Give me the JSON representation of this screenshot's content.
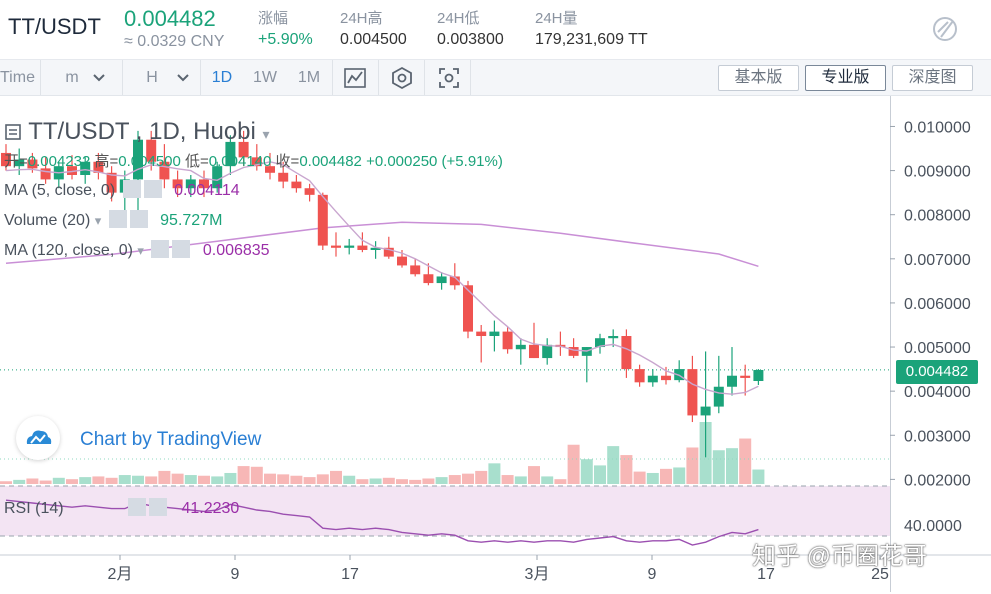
{
  "header": {
    "pair": "TT/USDT",
    "price": "0.004482",
    "cny": "≈ 0.0329 CNY",
    "stats": [
      {
        "label": "涨幅",
        "value": "+5.90%"
      },
      {
        "label": "24H高",
        "value": "0.004500"
      },
      {
        "label": "24H低",
        "value": "0.003800"
      },
      {
        "label": "24H量",
        "value": "179,231,609 TT"
      }
    ]
  },
  "toolbar": {
    "time_label": "Time",
    "minute_label": "m",
    "hour_label": "H",
    "intervals": [
      "1D",
      "1W",
      "1M"
    ],
    "active_interval": "1D",
    "view_buttons": [
      "基本版",
      "专业版",
      "深度图"
    ],
    "active_view": "专业版"
  },
  "legend": {
    "title": "TT/USDT , 1D, Huobi",
    "open_label": "开=",
    "open": "0.004232",
    "high_label": "高=",
    "high": "0.004500",
    "low_label": "低=",
    "low": "0.004140",
    "close_label": "收=",
    "close": "0.004482",
    "change": "+0.000250 (+5.91%)",
    "ma5_label": "MA (5, close, 0)",
    "ma5_value": "0.004114",
    "volume_label": "Volume (20)",
    "volume_value": "95.727M",
    "ma120_label": "MA (120, close, 0)",
    "ma120_value": "0.006835",
    "rsi_label": "RSI (14)",
    "rsi_value": "41.2230"
  },
  "branding": {
    "tv_text": "Chart by TradingView",
    "watermark": "知乎 @币圈花哥"
  },
  "chart_data": {
    "type": "candlestick",
    "colors": {
      "up": "#1ba37a",
      "down": "#ef5350",
      "ma5": "#c9a6cf",
      "ma120": "#c98fd6",
      "rsi": "#9b4fb0"
    },
    "y_axis": {
      "ticks": [
        "0.010000",
        "0.009000",
        "0.008000",
        "0.007000",
        "0.006000",
        "0.005000",
        "0.004000",
        "0.003000",
        "0.002000"
      ],
      "range": [
        0.00185,
        0.0106
      ]
    },
    "x_axis": {
      "ticks": [
        "2月",
        "9",
        "17",
        "3月",
        "9",
        "17",
        "25"
      ]
    },
    "last_price_tag": "0.004482",
    "candles": [
      {
        "o": 0.0094,
        "h": 0.0096,
        "l": 0.009,
        "c": 0.0091
      },
      {
        "o": 0.0091,
        "h": 0.0095,
        "l": 0.0089,
        "c": 0.00925
      },
      {
        "o": 0.00925,
        "h": 0.0094,
        "l": 0.00895,
        "c": 0.00905
      },
      {
        "o": 0.00905,
        "h": 0.0093,
        "l": 0.0087,
        "c": 0.0088
      },
      {
        "o": 0.0088,
        "h": 0.0092,
        "l": 0.0086,
        "c": 0.0091
      },
      {
        "o": 0.0091,
        "h": 0.00935,
        "l": 0.0088,
        "c": 0.0089
      },
      {
        "o": 0.0089,
        "h": 0.0093,
        "l": 0.0087,
        "c": 0.0092
      },
      {
        "o": 0.0092,
        "h": 0.0094,
        "l": 0.0088,
        "c": 0.00895
      },
      {
        "o": 0.00895,
        "h": 0.0091,
        "l": 0.0083,
        "c": 0.0085
      },
      {
        "o": 0.0085,
        "h": 0.009,
        "l": 0.0081,
        "c": 0.0088
      },
      {
        "o": 0.0088,
        "h": 0.0099,
        "l": 0.0078,
        "c": 0.0097
      },
      {
        "o": 0.0097,
        "h": 0.0099,
        "l": 0.009,
        "c": 0.0092
      },
      {
        "o": 0.0092,
        "h": 0.0096,
        "l": 0.0086,
        "c": 0.0088
      },
      {
        "o": 0.0088,
        "h": 0.009,
        "l": 0.0084,
        "c": 0.0086
      },
      {
        "o": 0.0086,
        "h": 0.0089,
        "l": 0.0084,
        "c": 0.0088
      },
      {
        "o": 0.0088,
        "h": 0.009,
        "l": 0.0084,
        "c": 0.0086
      },
      {
        "o": 0.0086,
        "h": 0.0092,
        "l": 0.0085,
        "c": 0.0091
      },
      {
        "o": 0.0091,
        "h": 0.0098,
        "l": 0.0089,
        "c": 0.00965
      },
      {
        "o": 0.00965,
        "h": 0.0099,
        "l": 0.0091,
        "c": 0.0093
      },
      {
        "o": 0.0093,
        "h": 0.0096,
        "l": 0.009,
        "c": 0.0091
      },
      {
        "o": 0.0091,
        "h": 0.0094,
        "l": 0.0088,
        "c": 0.00895
      },
      {
        "o": 0.00895,
        "h": 0.0092,
        "l": 0.0086,
        "c": 0.00875
      },
      {
        "o": 0.00875,
        "h": 0.0089,
        "l": 0.0085,
        "c": 0.0086
      },
      {
        "o": 0.0086,
        "h": 0.0087,
        "l": 0.0083,
        "c": 0.00845
      },
      {
        "o": 0.00845,
        "h": 0.0085,
        "l": 0.0072,
        "c": 0.0073
      },
      {
        "o": 0.0073,
        "h": 0.0076,
        "l": 0.00705,
        "c": 0.00725
      },
      {
        "o": 0.00725,
        "h": 0.00745,
        "l": 0.0071,
        "c": 0.0073
      },
      {
        "o": 0.0073,
        "h": 0.0076,
        "l": 0.00715,
        "c": 0.0072
      },
      {
        "o": 0.0072,
        "h": 0.0074,
        "l": 0.007,
        "c": 0.00725
      },
      {
        "o": 0.00725,
        "h": 0.0075,
        "l": 0.007,
        "c": 0.00705
      },
      {
        "o": 0.00705,
        "h": 0.0072,
        "l": 0.0068,
        "c": 0.00685
      },
      {
        "o": 0.00685,
        "h": 0.007,
        "l": 0.0066,
        "c": 0.00665
      },
      {
        "o": 0.00665,
        "h": 0.0069,
        "l": 0.0064,
        "c": 0.00645
      },
      {
        "o": 0.00645,
        "h": 0.0067,
        "l": 0.0063,
        "c": 0.0066
      },
      {
        "o": 0.0066,
        "h": 0.0069,
        "l": 0.0063,
        "c": 0.0064
      },
      {
        "o": 0.0064,
        "h": 0.0065,
        "l": 0.0052,
        "c": 0.00535
      },
      {
        "o": 0.00535,
        "h": 0.0055,
        "l": 0.00465,
        "c": 0.00525
      },
      {
        "o": 0.00525,
        "h": 0.0056,
        "l": 0.0049,
        "c": 0.00535
      },
      {
        "o": 0.00535,
        "h": 0.00545,
        "l": 0.00485,
        "c": 0.00495
      },
      {
        "o": 0.00495,
        "h": 0.0052,
        "l": 0.0046,
        "c": 0.00505
      },
      {
        "o": 0.00505,
        "h": 0.00555,
        "l": 0.00475,
        "c": 0.00475
      },
      {
        "o": 0.00475,
        "h": 0.0052,
        "l": 0.0046,
        "c": 0.00505
      },
      {
        "o": 0.00505,
        "h": 0.00535,
        "l": 0.0048,
        "c": 0.005
      },
      {
        "o": 0.005,
        "h": 0.0052,
        "l": 0.00475,
        "c": 0.0048
      },
      {
        "o": 0.0048,
        "h": 0.005,
        "l": 0.0042,
        "c": 0.005
      },
      {
        "o": 0.005,
        "h": 0.0053,
        "l": 0.00485,
        "c": 0.0052
      },
      {
        "o": 0.0052,
        "h": 0.0054,
        "l": 0.005,
        "c": 0.00525
      },
      {
        "o": 0.00525,
        "h": 0.0054,
        "l": 0.0043,
        "c": 0.0045
      },
      {
        "o": 0.0045,
        "h": 0.0046,
        "l": 0.0041,
        "c": 0.0042
      },
      {
        "o": 0.0042,
        "h": 0.0045,
        "l": 0.0041,
        "c": 0.00435
      },
      {
        "o": 0.00435,
        "h": 0.00455,
        "l": 0.00415,
        "c": 0.00425
      },
      {
        "o": 0.00425,
        "h": 0.0047,
        "l": 0.0042,
        "c": 0.0045
      },
      {
        "o": 0.0045,
        "h": 0.0048,
        "l": 0.0033,
        "c": 0.00345
      },
      {
        "o": 0.00345,
        "h": 0.0049,
        "l": 0.0025,
        "c": 0.00365
      },
      {
        "o": 0.00365,
        "h": 0.0048,
        "l": 0.0035,
        "c": 0.0041
      },
      {
        "o": 0.0041,
        "h": 0.005,
        "l": 0.0039,
        "c": 0.00435
      },
      {
        "o": 0.00435,
        "h": 0.0046,
        "l": 0.0039,
        "c": 0.0043
      },
      {
        "o": 0.00423,
        "h": 0.0045,
        "l": 0.00414,
        "c": 0.00448
      }
    ],
    "volume_scale": [
      0,
      9
    ],
    "volumes": [
      0.4,
      0.6,
      0.8,
      0.5,
      0.9,
      0.7,
      1.0,
      1.1,
      0.9,
      1.3,
      1.2,
      1.1,
      1.9,
      1.5,
      1.3,
      1.2,
      1.1,
      1.6,
      2.6,
      2.5,
      1.5,
      1.4,
      1.2,
      1.0,
      1.4,
      1.9,
      1.2,
      0.7,
      0.8,
      0.9,
      0.7,
      0.6,
      0.8,
      1.0,
      1.3,
      1.5,
      1.9,
      3.0,
      1.3,
      1.1,
      2.6,
      1.1,
      0.7,
      5.7,
      3.6,
      2.7,
      5.5,
      4.2,
      1.8,
      1.6,
      2.2,
      2.4,
      5.3,
      9.0,
      4.9,
      5.2,
      6.6,
      2.1
    ],
    "ma5": [
      0.009,
      0.00902,
      0.00903,
      0.00898,
      0.00895,
      0.00898,
      0.00902,
      0.00897,
      0.0089,
      0.00888,
      0.00903,
      0.00913,
      0.00909,
      0.00904,
      0.009,
      0.00882,
      0.00878,
      0.00894,
      0.00907,
      0.00913,
      0.0092,
      0.00913,
      0.00895,
      0.00877,
      0.00841,
      0.00807,
      0.00774,
      0.00742,
      0.00726,
      0.00721,
      0.00713,
      0.007,
      0.00684,
      0.00668,
      0.00658,
      0.00629,
      0.006,
      0.00571,
      0.00546,
      0.00518,
      0.00507,
      0.00503,
      0.00502,
      0.00493,
      0.00491,
      0.00502,
      0.00506,
      0.00496,
      0.00482,
      0.00465,
      0.00446,
      0.00436,
      0.00416,
      0.00404,
      0.00396,
      0.00393,
      0.00397,
      0.00411
    ],
    "ma120": [
      {
        "i": 0,
        "v": 0.0069
      },
      {
        "i": 8,
        "v": 0.0071
      },
      {
        "i": 16,
        "v": 0.0074
      },
      {
        "i": 24,
        "v": 0.0077
      },
      {
        "i": 30,
        "v": 0.00783
      },
      {
        "i": 36,
        "v": 0.00778
      },
      {
        "i": 42,
        "v": 0.00758
      },
      {
        "i": 48,
        "v": 0.00734
      },
      {
        "i": 54,
        "v": 0.00711
      },
      {
        "i": 57,
        "v": 0.00683
      }
    ],
    "rsi_axis_tick": "40.0000",
    "rsi_range": [
      30,
      70
    ],
    "rsi": [
      62,
      61,
      60,
      59,
      58,
      57,
      58,
      57,
      56,
      56,
      60,
      58,
      57,
      56,
      55,
      54,
      55,
      59,
      57,
      55,
      54,
      52,
      51,
      50,
      42,
      41,
      42,
      41,
      42,
      41,
      39,
      38,
      37,
      38,
      37,
      33,
      32,
      33,
      32,
      33,
      32,
      33,
      33,
      32,
      34,
      35,
      36,
      33,
      32,
      33,
      33,
      34,
      30,
      32,
      36,
      39,
      38,
      41
    ]
  }
}
